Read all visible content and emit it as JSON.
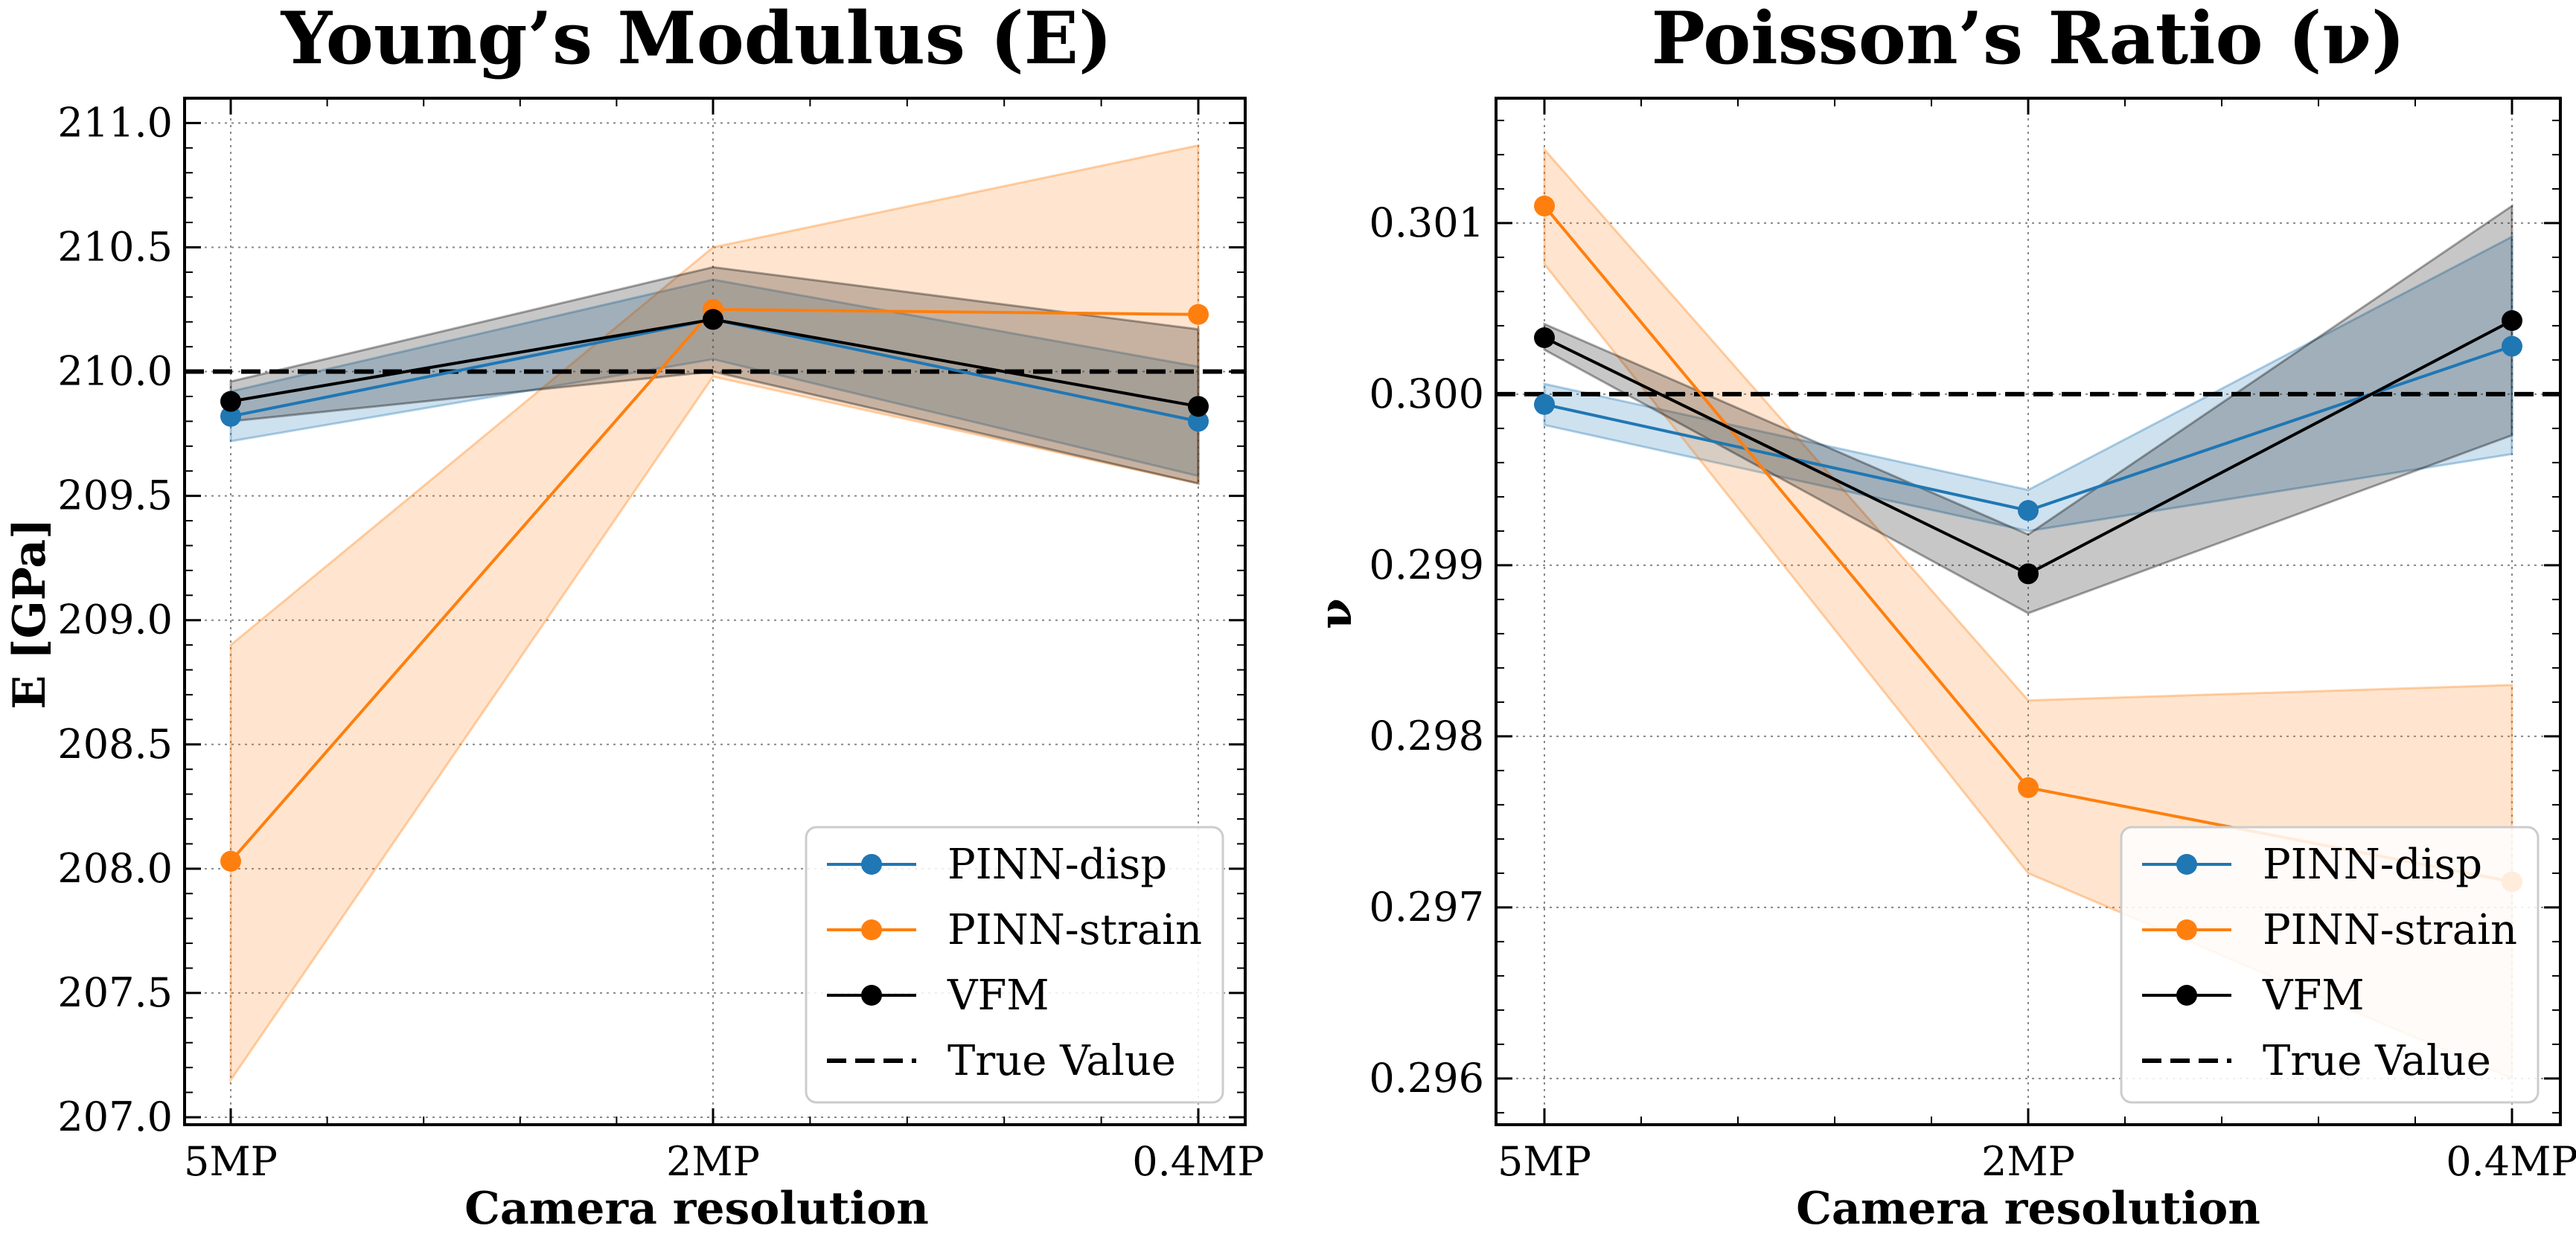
{
  "colors": {
    "pinn_disp": "#1f77b4",
    "pinn_strain": "#ff7f0e",
    "vfm": "#000000",
    "true_value": "#000000"
  },
  "legend": {
    "placement": "lower-right",
    "entries": [
      "PINN-disp",
      "PINN-strain",
      "VFM",
      "True Value"
    ]
  },
  "chart_data": [
    {
      "type": "line",
      "title": "Young’s Modulus (E)",
      "xlabel": "Camera resolution",
      "ylabel": "E [GPa]",
      "categories": [
        "5MP",
        "2MP",
        "0.4MP"
      ],
      "ylim": [
        206.97,
        211.1
      ],
      "yticks": [
        207.0,
        207.5,
        208.0,
        208.5,
        209.0,
        209.5,
        210.0,
        210.5,
        211.0
      ],
      "ytick_labels": [
        "207.0",
        "207.5",
        "208.0",
        "208.5",
        "209.0",
        "209.5",
        "210.0",
        "210.5",
        "211.0"
      ],
      "grid": true,
      "true_value": 210.0,
      "series": [
        {
          "name": "PINN-disp",
          "color_key": "pinn_disp",
          "values": [
            209.82,
            210.21,
            209.8
          ],
          "band_low": [
            209.72,
            210.05,
            209.58
          ],
          "band_high": [
            209.92,
            210.37,
            210.02
          ]
        },
        {
          "name": "PINN-strain",
          "color_key": "pinn_strain",
          "values": [
            208.03,
            210.25,
            210.23
          ],
          "band_low": [
            207.15,
            209.98,
            209.55
          ],
          "band_high": [
            208.9,
            210.5,
            210.91
          ]
        },
        {
          "name": "VFM",
          "color_key": "vfm",
          "values": [
            209.88,
            210.21,
            209.86
          ],
          "band_low": [
            209.8,
            210.0,
            209.55
          ],
          "band_high": [
            209.96,
            210.42,
            210.17
          ]
        }
      ]
    },
    {
      "type": "line",
      "title": "Poisson’s Ratio (ν)",
      "xlabel": "Camera resolution",
      "ylabel": "ν",
      "categories": [
        "5MP",
        "2MP",
        "0.4MP"
      ],
      "ylim": [
        0.29573,
        0.30173
      ],
      "yticks": [
        0.296,
        0.297,
        0.298,
        0.299,
        0.3,
        0.301
      ],
      "ytick_labels": [
        "0.296",
        "0.297",
        "0.298",
        "0.299",
        "0.300",
        "0.301"
      ],
      "grid": true,
      "true_value": 0.3,
      "series": [
        {
          "name": "PINN-disp",
          "color_key": "pinn_disp",
          "values": [
            0.29994,
            0.29932,
            0.30028
          ],
          "band_low": [
            0.29982,
            0.2992,
            0.29965
          ],
          "band_high": [
            0.30006,
            0.29944,
            0.30092
          ]
        },
        {
          "name": "PINN-strain",
          "color_key": "pinn_strain",
          "values": [
            0.3011,
            0.2977,
            0.29715
          ],
          "band_low": [
            0.30076,
            0.2972,
            0.296
          ],
          "band_high": [
            0.30143,
            0.29821,
            0.2983
          ]
        },
        {
          "name": "VFM",
          "color_key": "vfm",
          "values": [
            0.30033,
            0.29895,
            0.30043
          ],
          "band_low": [
            0.30026,
            0.29872,
            0.29976
          ],
          "band_high": [
            0.30041,
            0.29918,
            0.3011
          ]
        }
      ]
    }
  ]
}
